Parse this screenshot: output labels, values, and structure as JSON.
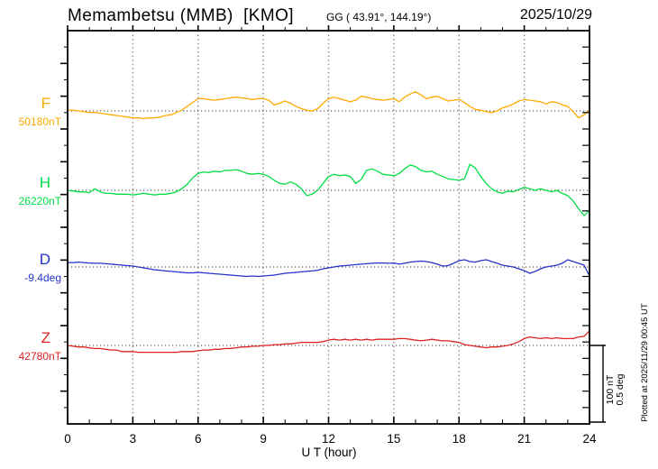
{
  "header": {
    "station_title": "Memambetsu (MMB)  [KMO]",
    "geographic_coords": "GG ( 43.91°, 144.19°)",
    "date": "2025/10/29"
  },
  "x_axis": {
    "label": "U T (hour)",
    "tick_hours": [
      0,
      3,
      6,
      9,
      12,
      15,
      18,
      21,
      24
    ]
  },
  "scale_bar": {
    "nt_label": "100 nT",
    "deg_label": "0.5 deg"
  },
  "plotted_at": "Plotted at 2025/11/29 00:45 UT",
  "chart_data": {
    "type": "line",
    "x_label": "U T (hour)",
    "x_range_hours": [
      0,
      24
    ],
    "x_step_hours": 0.25,
    "grid_hours": [
      3,
      6,
      9,
      12,
      15,
      18,
      21
    ],
    "scale": {
      "nT_per_division": 100,
      "deg_per_division": 0.5
    },
    "series": [
      {
        "name": "F",
        "axis_label": "F",
        "baseline_label": "50180nT",
        "unit": "nT",
        "baseline_value": 50180,
        "color": "#ffaa00",
        "values": [
          50181,
          50181,
          50180,
          50179,
          50178,
          50178,
          50177,
          50176,
          50175,
          50174,
          50173,
          50172,
          50171,
          50171,
          50170,
          50171,
          50171,
          50172,
          50174,
          50175,
          50178,
          50181,
          50186,
          50191,
          50196,
          50196,
          50195,
          50194,
          50195,
          50196,
          50197,
          50198,
          50197,
          50196,
          50195,
          50196,
          50196,
          50194,
          50188,
          50190,
          50193,
          50190,
          50186,
          50183,
          50181,
          50180,
          50183,
          50190,
          50196,
          50198,
          50196,
          50194,
          50192,
          50194,
          50199,
          50198,
          50196,
          50195,
          50194,
          50195,
          50196,
          50192,
          50198,
          50202,
          50205,
          50201,
          50196,
          50198,
          50199,
          50196,
          50193,
          50194,
          50195,
          50191,
          50186,
          50182,
          50181,
          50179,
          50178,
          50180,
          50184,
          50186,
          50189,
          50193,
          50195,
          50194,
          50193,
          50192,
          50189,
          50192,
          50191,
          50188,
          50186,
          50179,
          50171,
          50175,
          50181
        ]
      },
      {
        "name": "H",
        "axis_label": "H",
        "baseline_label": "26220nT",
        "unit": "nT",
        "baseline_value": 26220,
        "color": "#00dd44",
        "values": [
          26220,
          26219,
          26218,
          26218,
          26217,
          26222,
          26218,
          26216,
          26216,
          26215,
          26215,
          26215,
          26214,
          26215,
          26216,
          26215,
          26214,
          26215,
          26215,
          26216,
          26218,
          26222,
          26228,
          26236,
          26242,
          26244,
          26243,
          26245,
          26244,
          26246,
          26246,
          26247,
          26245,
          26242,
          26241,
          26242,
          26241,
          26238,
          26233,
          26229,
          26228,
          26231,
          26228,
          26222,
          26213,
          26215,
          26220,
          26229,
          26238,
          26241,
          26239,
          26240,
          26238,
          26229,
          26234,
          26246,
          26248,
          26245,
          26241,
          26240,
          26239,
          26242,
          26248,
          26253,
          26251,
          26246,
          26244,
          26245,
          26241,
          26238,
          26235,
          26234,
          26233,
          26235,
          26254,
          26249,
          26238,
          26229,
          26222,
          26218,
          26216,
          26219,
          26218,
          26221,
          26224,
          26222,
          26220,
          26222,
          26220,
          26218,
          26220,
          26216,
          26213,
          26206,
          26196,
          26187,
          26194
        ]
      },
      {
        "name": "D",
        "axis_label": "D",
        "baseline_label": "-9.4deg",
        "unit": "deg",
        "baseline_value": -9.4,
        "color": "#2233cc",
        "values": [
          -9.371,
          -9.371,
          -9.368,
          -9.371,
          -9.374,
          -9.376,
          -9.376,
          -9.379,
          -9.382,
          -9.385,
          -9.388,
          -9.391,
          -9.394,
          -9.4,
          -9.406,
          -9.412,
          -9.418,
          -9.421,
          -9.426,
          -9.429,
          -9.432,
          -9.435,
          -9.438,
          -9.438,
          -9.435,
          -9.438,
          -9.441,
          -9.444,
          -9.447,
          -9.45,
          -9.453,
          -9.456,
          -9.459,
          -9.462,
          -9.459,
          -9.462,
          -9.459,
          -9.456,
          -9.453,
          -9.447,
          -9.441,
          -9.438,
          -9.435,
          -9.432,
          -9.429,
          -9.426,
          -9.421,
          -9.412,
          -9.406,
          -9.4,
          -9.394,
          -9.391,
          -9.388,
          -9.385,
          -9.382,
          -9.379,
          -9.376,
          -9.374,
          -9.374,
          -9.376,
          -9.374,
          -9.382,
          -9.376,
          -9.368,
          -9.365,
          -9.362,
          -9.365,
          -9.371,
          -9.382,
          -9.394,
          -9.391,
          -9.376,
          -9.359,
          -9.353,
          -9.365,
          -9.368,
          -9.359,
          -9.353,
          -9.365,
          -9.376,
          -9.388,
          -9.394,
          -9.4,
          -9.412,
          -9.424,
          -9.441,
          -9.429,
          -9.412,
          -9.4,
          -9.394,
          -9.388,
          -9.376,
          -9.353,
          -9.365,
          -9.376,
          -9.388,
          -9.459
        ]
      },
      {
        "name": "Z",
        "axis_label": "Z",
        "baseline_label": "42780nT",
        "unit": "nT",
        "baseline_value": 42780,
        "color": "#dd2222",
        "values": [
          42780,
          42779,
          42778,
          42778,
          42777,
          42776,
          42776,
          42775,
          42774,
          42774,
          42772,
          42772,
          42772,
          42771,
          42771,
          42771,
          42771,
          42771,
          42771,
          42771,
          42771,
          42772,
          42772,
          42772,
          42773,
          42774,
          42774,
          42775,
          42775,
          42776,
          42776,
          42777,
          42778,
          42778,
          42779,
          42779,
          42780,
          42780,
          42781,
          42781,
          42782,
          42782,
          42783,
          42784,
          42784,
          42784,
          42784,
          42785,
          42787,
          42788,
          42787,
          42788,
          42787,
          42788,
          42787,
          42788,
          42787,
          42788,
          42788,
          42788,
          42788,
          42789,
          42789,
          42788,
          42787,
          42786,
          42787,
          42788,
          42787,
          42786,
          42786,
          42785,
          42784,
          42781,
          42780,
          42779,
          42778,
          42777,
          42778,
          42778,
          42779,
          42780,
          42782,
          42785,
          42789,
          42791,
          42790,
          42789,
          42790,
          42789,
          42790,
          42789,
          42789,
          42789,
          42791,
          42792,
          42799
        ]
      }
    ]
  }
}
